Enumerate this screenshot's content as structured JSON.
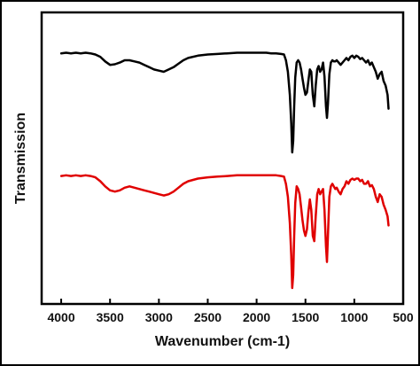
{
  "chart_data": {
    "type": "line",
    "xlabel": "Wavenumber (cm-1)",
    "ylabel": "Transmission",
    "xlim": [
      4200,
      500
    ],
    "x_reversed": true,
    "y_ticks_shown": false,
    "grid": false,
    "x_ticks": [
      4000,
      3500,
      3000,
      2500,
      2000,
      1500,
      1000,
      500
    ],
    "x_tick_labels": [
      "4000",
      "3500",
      "3000",
      "2500",
      "2000",
      "1500",
      "1000",
      "500"
    ],
    "series": [
      {
        "color": "#000000",
        "x": [
          4000,
          3950,
          3900,
          3850,
          3800,
          3750,
          3700,
          3650,
          3600,
          3550,
          3500,
          3450,
          3400,
          3350,
          3300,
          3250,
          3200,
          3150,
          3100,
          3050,
          3000,
          2950,
          2900,
          2850,
          2800,
          2750,
          2700,
          2600,
          2500,
          2400,
          2300,
          2200,
          2100,
          2000,
          1900,
          1850,
          1800,
          1750,
          1720,
          1700,
          1680,
          1660,
          1645,
          1635,
          1625,
          1615,
          1605,
          1590,
          1575,
          1560,
          1545,
          1530,
          1515,
          1500,
          1485,
          1470,
          1455,
          1440,
          1425,
          1410,
          1395,
          1380,
          1365,
          1350,
          1335,
          1320,
          1305,
          1290,
          1280,
          1270,
          1255,
          1240,
          1225,
          1210,
          1195,
          1180,
          1160,
          1140,
          1120,
          1100,
          1080,
          1060,
          1040,
          1020,
          1000,
          980,
          960,
          940,
          920,
          900,
          880,
          860,
          840,
          820,
          800,
          780,
          760,
          740,
          720,
          700,
          680,
          660,
          650
        ],
        "y": [
          0.86,
          0.865,
          0.86,
          0.865,
          0.86,
          0.865,
          0.86,
          0.85,
          0.83,
          0.79,
          0.76,
          0.765,
          0.78,
          0.8,
          0.8,
          0.79,
          0.78,
          0.76,
          0.74,
          0.72,
          0.71,
          0.7,
          0.72,
          0.74,
          0.77,
          0.8,
          0.82,
          0.84,
          0.85,
          0.855,
          0.86,
          0.865,
          0.865,
          0.865,
          0.865,
          0.86,
          0.86,
          0.855,
          0.85,
          0.8,
          0.7,
          0.5,
          0.25,
          0.0,
          0.1,
          0.4,
          0.65,
          0.78,
          0.8,
          0.78,
          0.72,
          0.64,
          0.56,
          0.5,
          0.52,
          0.62,
          0.72,
          0.7,
          0.5,
          0.4,
          0.58,
          0.72,
          0.75,
          0.7,
          0.72,
          0.78,
          0.66,
          0.4,
          0.3,
          0.42,
          0.68,
          0.78,
          0.8,
          0.79,
          0.79,
          0.8,
          0.78,
          0.76,
          0.78,
          0.8,
          0.82,
          0.8,
          0.83,
          0.84,
          0.82,
          0.84,
          0.83,
          0.81,
          0.82,
          0.8,
          0.78,
          0.8,
          0.76,
          0.78,
          0.74,
          0.7,
          0.64,
          0.68,
          0.7,
          0.62,
          0.58,
          0.5,
          0.38
        ]
      },
      {
        "color": "#e00000",
        "x": [
          4000,
          3950,
          3900,
          3850,
          3800,
          3750,
          3700,
          3650,
          3600,
          3550,
          3500,
          3450,
          3400,
          3350,
          3300,
          3250,
          3200,
          3150,
          3100,
          3050,
          3000,
          2950,
          2900,
          2850,
          2800,
          2750,
          2700,
          2600,
          2500,
          2400,
          2300,
          2200,
          2100,
          2000,
          1900,
          1850,
          1800,
          1750,
          1720,
          1700,
          1680,
          1660,
          1645,
          1635,
          1625,
          1615,
          1605,
          1590,
          1575,
          1560,
          1545,
          1530,
          1515,
          1500,
          1485,
          1470,
          1455,
          1440,
          1425,
          1410,
          1395,
          1380,
          1365,
          1350,
          1335,
          1320,
          1305,
          1290,
          1280,
          1270,
          1255,
          1240,
          1225,
          1210,
          1195,
          1180,
          1160,
          1140,
          1120,
          1100,
          1080,
          1060,
          1040,
          1020,
          1000,
          980,
          960,
          940,
          920,
          900,
          880,
          860,
          840,
          820,
          800,
          780,
          760,
          740,
          720,
          700,
          680,
          660,
          650
        ],
        "y": [
          0.86,
          0.865,
          0.86,
          0.865,
          0.86,
          0.865,
          0.86,
          0.85,
          0.82,
          0.78,
          0.75,
          0.74,
          0.75,
          0.77,
          0.78,
          0.77,
          0.76,
          0.75,
          0.74,
          0.73,
          0.72,
          0.71,
          0.72,
          0.74,
          0.77,
          0.8,
          0.82,
          0.84,
          0.85,
          0.855,
          0.86,
          0.865,
          0.865,
          0.865,
          0.865,
          0.865,
          0.865,
          0.86,
          0.855,
          0.8,
          0.7,
          0.5,
          0.25,
          0.0,
          0.1,
          0.4,
          0.65,
          0.78,
          0.76,
          0.72,
          0.62,
          0.52,
          0.44,
          0.4,
          0.45,
          0.58,
          0.68,
          0.6,
          0.4,
          0.36,
          0.55,
          0.72,
          0.76,
          0.72,
          0.74,
          0.76,
          0.6,
          0.32,
          0.2,
          0.4,
          0.7,
          0.78,
          0.8,
          0.78,
          0.76,
          0.77,
          0.74,
          0.72,
          0.76,
          0.78,
          0.82,
          0.8,
          0.83,
          0.84,
          0.83,
          0.84,
          0.84,
          0.82,
          0.83,
          0.8,
          0.8,
          0.82,
          0.78,
          0.79,
          0.76,
          0.7,
          0.66,
          0.72,
          0.7,
          0.64,
          0.6,
          0.55,
          0.48
        ]
      }
    ]
  }
}
